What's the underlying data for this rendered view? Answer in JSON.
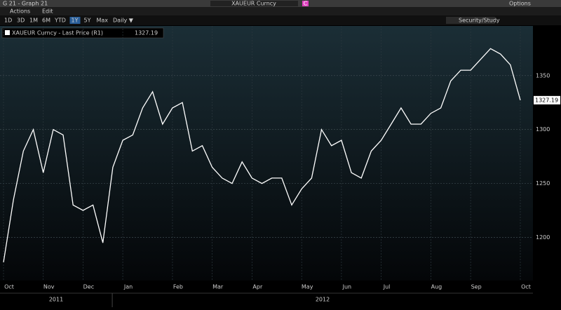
{
  "ui": {
    "window_title": "G 21 - Graph 21",
    "security": "XAUEUR Curncy",
    "badge": "C",
    "options": "Options",
    "menu": [
      "Actions",
      "Edit"
    ],
    "periods": [
      "1D",
      "3D",
      "1M",
      "6M",
      "YTD",
      "1Y",
      "5Y",
      "Max",
      "Daily ▼"
    ],
    "selected_period": 5,
    "study_button": "Security/Study"
  },
  "chart_data": {
    "type": "line",
    "categories": [
      "Oct",
      null,
      null,
      null,
      "Nov",
      null,
      null,
      null,
      "Dec",
      null,
      null,
      null,
      "Jan",
      null,
      null,
      null,
      null,
      "Feb",
      null,
      null,
      null,
      "Mar",
      null,
      null,
      null,
      "Apr",
      null,
      null,
      null,
      null,
      "May",
      null,
      null,
      null,
      "Jun",
      null,
      null,
      null,
      "Jul",
      null,
      null,
      null,
      null,
      "Aug",
      null,
      null,
      null,
      "Sep",
      null,
      null,
      null,
      null,
      "Oct"
    ],
    "x_groups": [
      "2011",
      "2012"
    ],
    "series": [
      {
        "name": "XAUEUR Curncy - Last Price (R1)",
        "color": "#ffffff",
        "values": [
          1177,
          1235,
          1280,
          1300,
          1260,
          1300,
          1295,
          1230,
          1225,
          1230,
          1195,
          1265,
          1290,
          1295,
          1320,
          1335,
          1305,
          1320,
          1325,
          1280,
          1285,
          1265,
          1255,
          1250,
          1270,
          1255,
          1250,
          1255,
          1255,
          1230,
          1245,
          1255,
          1300,
          1285,
          1290,
          1260,
          1255,
          1280,
          1290,
          1305,
          1320,
          1305,
          1305,
          1315,
          1320,
          1345,
          1355,
          1355,
          1365,
          1375,
          1370,
          1360,
          1327.19
        ]
      }
    ],
    "ylim": [
      1160,
      1396
    ],
    "yticks": [
      1200,
      1250,
      1300,
      1350
    ],
    "grid": true
  }
}
